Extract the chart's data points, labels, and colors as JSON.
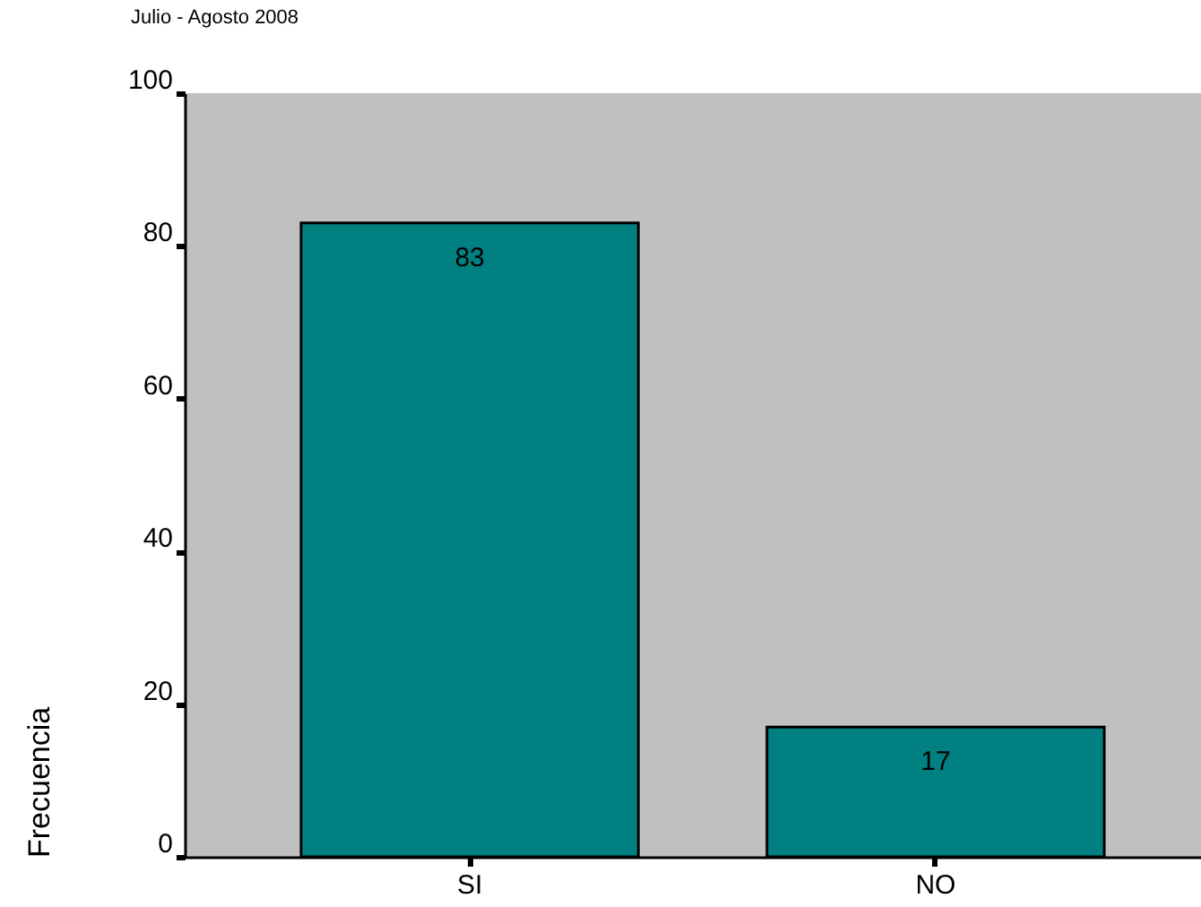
{
  "chart_data": {
    "type": "bar",
    "title": "Julio - Agosto 2008",
    "ylabel": "Frecuencia",
    "categories": [
      "SI",
      "NO"
    ],
    "values": [
      83,
      17
    ],
    "color": "#008080",
    "ylim": [
      0,
      100
    ],
    "yticks": [
      0,
      20,
      40,
      60,
      80,
      100
    ],
    "data_labels": true,
    "grid": false
  }
}
